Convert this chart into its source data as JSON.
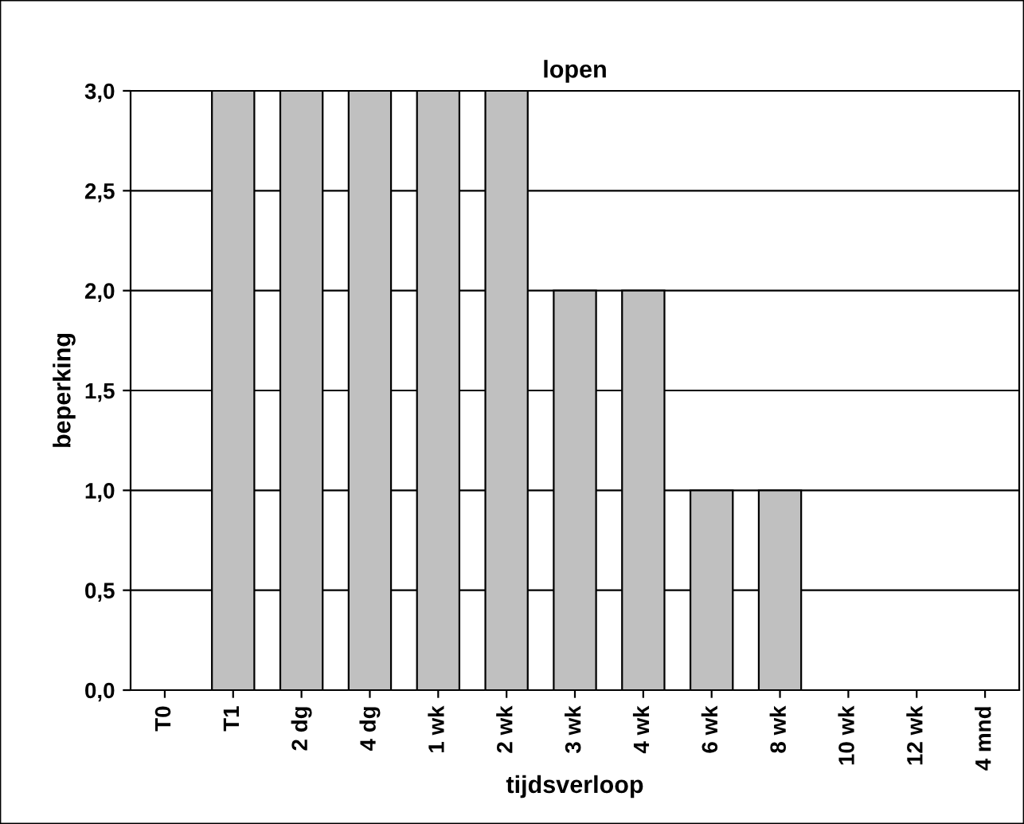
{
  "chart_data": {
    "type": "bar",
    "title": "lopen",
    "xlabel": "tijdsverloop",
    "ylabel": "beperking",
    "categories": [
      "T0",
      "T1",
      "2 dg",
      "4 dg",
      "1 wk",
      "2 wk",
      "3 wk",
      "4 wk",
      "6 wk",
      "8 wk",
      "10 wk",
      "12 wk",
      "4 mnd"
    ],
    "values": [
      0,
      3,
      3,
      3,
      3,
      3,
      2,
      2,
      1,
      1,
      0,
      0,
      0
    ],
    "color": "#c0c0c0",
    "ylim": [
      0,
      3
    ],
    "yticks": [
      {
        "value": 0,
        "label": "0,0"
      },
      {
        "value": 0.5,
        "label": "0,5"
      },
      {
        "value": 1,
        "label": "1,0"
      },
      {
        "value": 1.5,
        "label": "1,5"
      },
      {
        "value": 2,
        "label": "2,0"
      },
      {
        "value": 2.5,
        "label": "2,5"
      },
      {
        "value": 3,
        "label": "3,0"
      }
    ],
    "grid": "y"
  }
}
